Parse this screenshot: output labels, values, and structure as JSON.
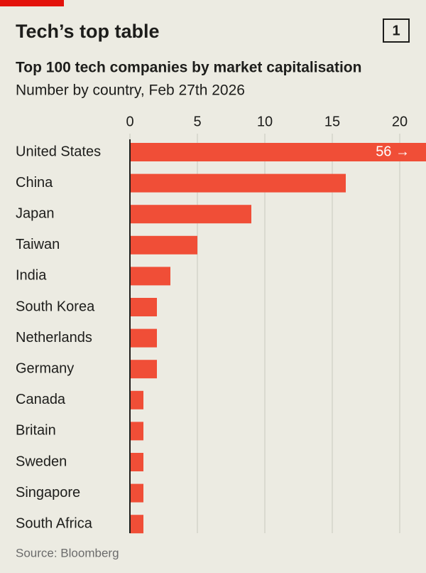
{
  "chart_data": {
    "type": "bar",
    "orientation": "horizontal",
    "title": "Tech’s top table",
    "badge": "1",
    "subtitle": "Top 100 tech companies by market capitalisation",
    "description": "Number by country, Feb 27th 2026",
    "source": "Source: Bloomberg",
    "categories": [
      "United States",
      "China",
      "Japan",
      "Taiwan",
      "India",
      "South Korea",
      "Netherlands",
      "Germany",
      "Canada",
      "Britain",
      "Sweden",
      "Singapore",
      "South Africa"
    ],
    "values": [
      56,
      16,
      9,
      5,
      3,
      2,
      2,
      2,
      1,
      1,
      1,
      1,
      1
    ],
    "value_labels": [
      "56 →",
      null,
      null,
      null,
      null,
      null,
      null,
      null,
      null,
      null,
      null,
      null,
      null
    ],
    "color": "#f04e37",
    "xlim": [
      0,
      20
    ],
    "xticks": [
      0,
      5,
      10,
      15,
      20
    ],
    "grid": true
  }
}
